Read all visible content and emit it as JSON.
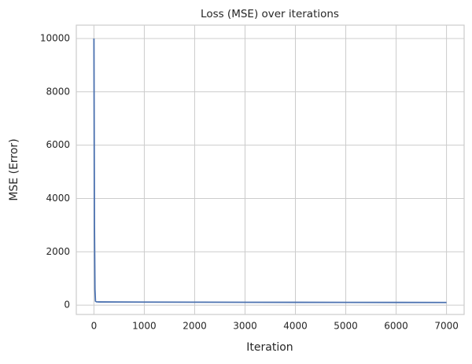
{
  "chart_data": {
    "type": "line",
    "title": "Loss (MSE) over iterations",
    "x_label": "Iteration",
    "y_label": "MSE (Error)",
    "x": [
      0,
      10,
      20,
      30,
      50,
      100,
      500,
      1000,
      2000,
      3000,
      4000,
      5000,
      6000,
      7000
    ],
    "series": [
      {
        "name": "MSE",
        "color": "#4c72b0",
        "values": [
          10000,
          3000,
          600,
          150,
          125,
          120,
          117,
          114,
          110,
          107,
          105,
          103,
          101,
          100
        ]
      }
    ],
    "xlim": [
      -350,
      7350
    ],
    "xticks": [
      0,
      1000,
      2000,
      3000,
      4000,
      5000,
      6000,
      7000
    ],
    "ylim": [
      -350,
      10500
    ],
    "yticks": [
      0,
      2000,
      4000,
      6000,
      8000,
      10000
    ],
    "grid": true
  }
}
